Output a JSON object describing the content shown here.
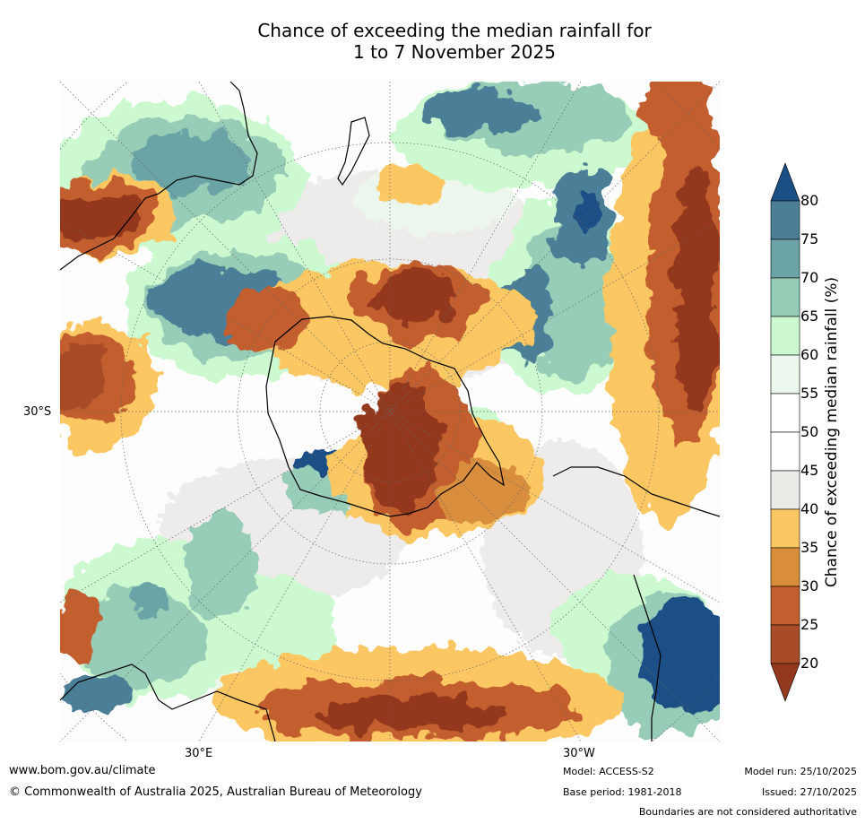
{
  "title": {
    "line1": "Chance of exceeding the median rainfall for",
    "line2": "1 to 7 November 2025"
  },
  "map": {
    "projection": "south-polar stereographic",
    "lat_labels": [
      "30°S"
    ],
    "lon_labels": [
      "30°E",
      "30°W"
    ]
  },
  "legend": {
    "title": "Chance of exceeding median rainfall (%)",
    "ticks": [
      "20",
      "25",
      "30",
      "35",
      "40",
      "45",
      "50",
      "55",
      "60",
      "65",
      "70",
      "75",
      "80"
    ],
    "colors": [
      "#93391c",
      "#a94b28",
      "#c35f2e",
      "#d98e3c",
      "#fbc762",
      "#ecebe8",
      "#ffffff",
      "#ffffff",
      "#ebf6ec",
      "#ccf9cf",
      "#97cdb7",
      "#6aa4a7",
      "#4c7e97",
      "#1a4f85"
    ],
    "extend_low_color": "#93391c",
    "extend_high_color": "#1a4f85"
  },
  "footer": {
    "website": "www.bom.gov.au/climate",
    "copyright": "© Commonwealth of Australia 2025, Australian Bureau of Meteorology",
    "model": "Model: ACCESS-S2",
    "base_period": "Base period: 1981-2018",
    "model_run": "Model run: 25/10/2025",
    "issued": "Issued: 27/10/2025",
    "disclaimer": "Boundaries are not considered authoritative"
  }
}
